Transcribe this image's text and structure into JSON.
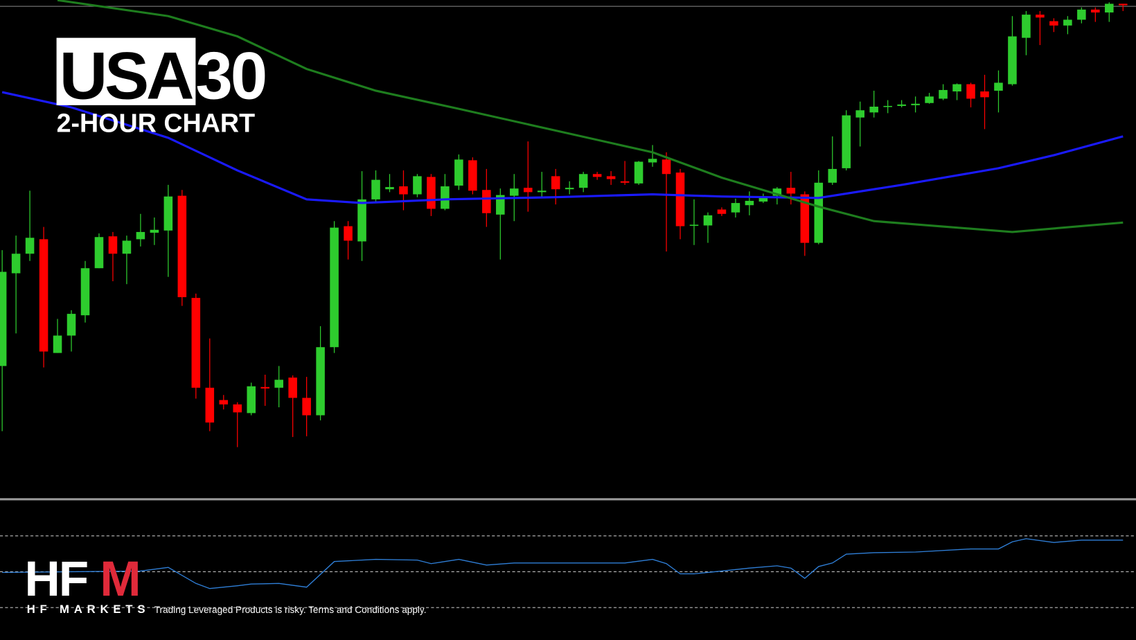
{
  "header": {
    "title_boxed": "USA",
    "title_rest": "30",
    "subtitle": "2-HOUR CHART"
  },
  "footer": {
    "logo_letters": "HF",
    "logo_accent": "M",
    "logo_tagline": "HF MARKETS",
    "disclaimer": "Trading Leveraged Products is risky. Terms and Conditions apply."
  },
  "chart_data": [
    {
      "type": "candlestick",
      "up_color": "#2ecc2e",
      "down_color": "#ff0000",
      "ylim": [
        12,
        700
      ],
      "open": [
        195,
        323,
        350,
        370,
        213,
        237,
        265,
        330,
        374,
        350,
        370,
        379,
        382,
        430,
        289,
        165,
        148,
        142,
        130,
        166,
        165,
        179,
        151,
        127,
        221,
        388,
        367,
        425,
        439,
        443,
        432,
        456,
        412,
        444,
        479,
        438,
        404,
        430,
        441,
        435,
        457,
        439,
        441,
        460,
        457,
        450,
        447,
        476,
        480,
        462,
        389,
        389,
        411,
        407,
        417,
        422,
        430,
        441,
        432,
        365,
        448,
        468,
        538,
        545,
        553,
        554,
        555,
        558,
        564,
        574,
        584,
        574,
        575,
        584,
        648,
        680,
        671,
        665,
        673,
        687,
        683,
        695
      ],
      "high": [
        355,
        375,
        437,
        387,
        260,
        272,
        340,
        378,
        380,
        375,
        405,
        400,
        445,
        438,
        295,
        233,
        155,
        145,
        172,
        183,
        195,
        182,
        180,
        250,
        395,
        395,
        464,
        465,
        460,
        465,
        460,
        460,
        460,
        487,
        483,
        467,
        440,
        460,
        505,
        463,
        467,
        450,
        463,
        463,
        464,
        478,
        478,
        500,
        490,
        467,
        425,
        407,
        414,
        426,
        436,
        433,
        442,
        463,
        436,
        465,
        512,
        548,
        560,
        575,
        562,
        562,
        567,
        572,
        584,
        585,
        586,
        597,
        603,
        678,
        685,
        685,
        675,
        678,
        690,
        690,
        697,
        695
      ],
      "low": [
        105,
        240,
        340,
        193,
        213,
        215,
        255,
        330,
        312,
        308,
        360,
        362,
        318,
        278,
        150,
        105,
        135,
        83,
        127,
        140,
        138,
        97,
        98,
        120,
        213,
        342,
        340,
        420,
        435,
        410,
        428,
        402,
        410,
        438,
        432,
        387,
        342,
        395,
        408,
        428,
        418,
        432,
        435,
        452,
        445,
        445,
        445,
        470,
        353,
        370,
        362,
        365,
        402,
        400,
        403,
        420,
        418,
        418,
        347,
        363,
        445,
        465,
        498,
        538,
        544,
        552,
        545,
        557,
        562,
        562,
        552,
        522,
        545,
        582,
        624,
        638,
        656,
        653,
        668,
        670,
        670,
        685
      ],
      "close": [
        325,
        350,
        372,
        215,
        237,
        267,
        330,
        373,
        350,
        368,
        380,
        383,
        429,
        290,
        165,
        117,
        142,
        131,
        167,
        164,
        176,
        151,
        127,
        221,
        386,
        368,
        425,
        452,
        442,
        432,
        457,
        412,
        443,
        480,
        437,
        406,
        431,
        440,
        435,
        437,
        439,
        441,
        460,
        456,
        453,
        448,
        477,
        481,
        460,
        388,
        390,
        403,
        405,
        420,
        423,
        429,
        440,
        433,
        365,
        448,
        467,
        541,
        548,
        553,
        554,
        556,
        557,
        567,
        576,
        584,
        564,
        566,
        586,
        650,
        680,
        676,
        665,
        673,
        687,
        683,
        695,
        693
      ],
      "moving_averages": [
        {
          "color": "#1a1aff",
          "x": [
            0,
            5,
            12,
            17,
            22,
            26,
            32,
            40,
            47,
            52,
            59,
            65,
            72,
            76,
            81
          ],
          "values": [
            573,
            552,
            510,
            465,
            425,
            420,
            425,
            428,
            432,
            429,
            427,
            445,
            468,
            486,
            512
          ]
        },
        {
          "color": "#1e7d1e",
          "x": [
            4,
            12,
            17,
            22,
            27,
            33,
            40,
            47,
            52,
            59,
            63,
            73,
            81
          ],
          "values": [
            700,
            678,
            650,
            605,
            575,
            550,
            520,
            490,
            455,
            415,
            395,
            380,
            393
          ]
        }
      ]
    },
    {
      "type": "line",
      "color": "#2f7fd8",
      "ylim": [
        12,
        90
      ],
      "levels": [
        70,
        50,
        30
      ],
      "x": [
        0,
        10,
        12,
        14,
        15,
        17,
        18,
        20,
        22,
        24,
        27,
        30,
        31,
        33,
        35,
        37,
        42,
        45,
        47,
        48,
        49,
        50,
        52,
        54,
        56,
        57,
        58,
        59,
        60,
        61,
        63,
        66,
        70,
        72,
        73,
        74,
        76,
        78,
        81
      ],
      "values": [
        49.6,
        50.4,
        52.4,
        43.5,
        40.6,
        42.2,
        43.1,
        43.5,
        41.4,
        55.7,
        56.9,
        56.5,
        54.5,
        56.9,
        53.7,
        54.9,
        54.9,
        54.9,
        56.9,
        54.5,
        48.8,
        48.8,
        50.4,
        52.0,
        53.3,
        52.0,
        46.3,
        52.9,
        54.9,
        59.8,
        60.6,
        61.0,
        62.7,
        62.7,
        66.7,
        68.4,
        66.3,
        67.6,
        67.6
      ]
    }
  ]
}
